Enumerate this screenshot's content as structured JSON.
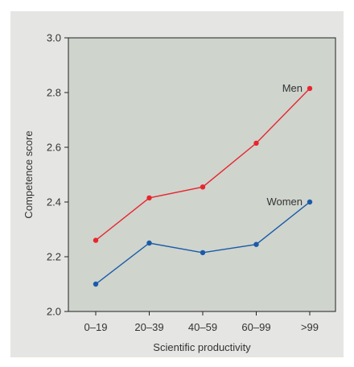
{
  "chart_data": {
    "type": "line",
    "categories": [
      "0–19",
      "20–39",
      "40–59",
      "60–99",
      ">99"
    ],
    "xlabel": "Scientific productivity",
    "ylabel": "Competence score",
    "ylim": [
      2.0,
      3.0
    ],
    "yticks": [
      "2.0",
      "2.2",
      "2.4",
      "2.6",
      "2.8",
      "3.0"
    ],
    "grid": false,
    "series": [
      {
        "name": "Men",
        "values": [
          2.26,
          2.415,
          2.455,
          2.615,
          2.815
        ],
        "color": "#e8252e"
      },
      {
        "name": "Women",
        "values": [
          2.1,
          2.25,
          2.215,
          2.245,
          2.4
        ],
        "color": "#1a5aa8"
      }
    ]
  },
  "colors": {
    "panel_background": "#e5e5e3",
    "plot_background": "#cfd4cd"
  }
}
